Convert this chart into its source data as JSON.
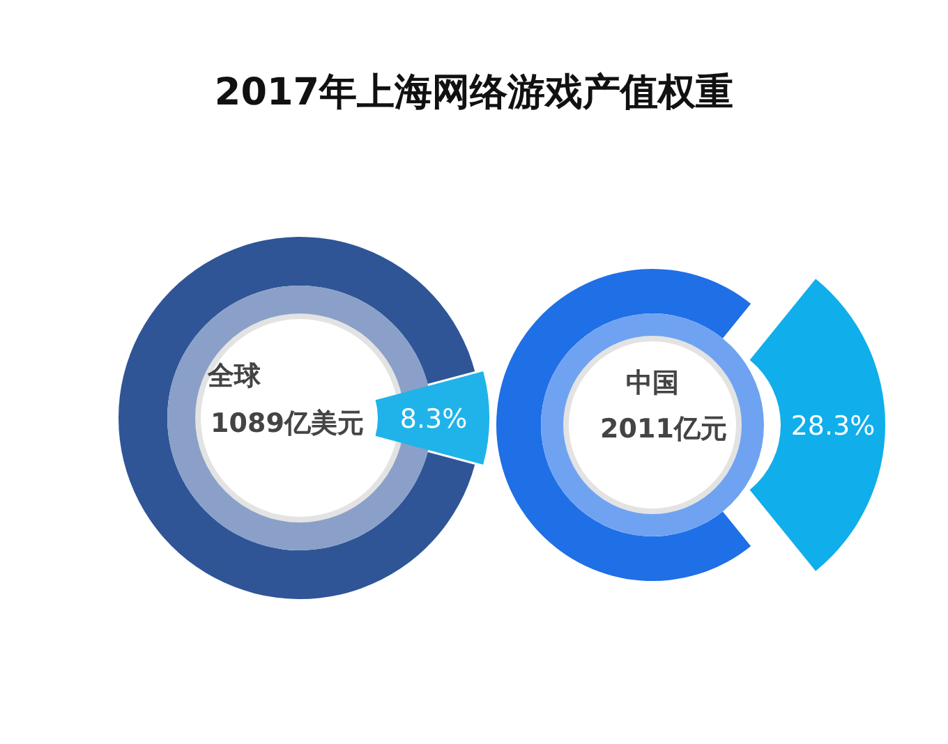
{
  "chart_data": [
    {
      "type": "donut",
      "title": "2017年上海网络游戏产值权重",
      "categories": [
        null,
        null
      ],
      "values": [
        8.3,
        91.7
      ],
      "colors": [
        "#1fb3ea",
        "#2f5597"
      ],
      "value_labels": [
        "8.3%",
        null
      ],
      "annotations": [
        "全球",
        "1089亿美元"
      ]
    },
    {
      "type": "donut",
      "categories": [
        null,
        null
      ],
      "values": [
        28.3,
        71.7
      ],
      "colors": [
        "#10aeea",
        "#1f6fe6"
      ],
      "value_labels": [
        "28.3%",
        null
      ],
      "annotations": [
        "中国",
        "2011亿元"
      ]
    }
  ]
}
